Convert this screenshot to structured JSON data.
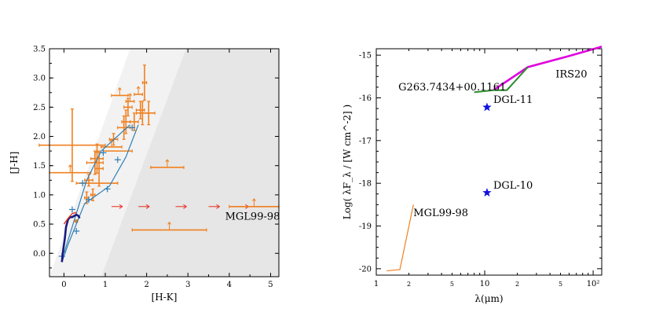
{
  "chart_data": [
    {
      "type": "scatter",
      "title": "",
      "xlabel": "[H-K]",
      "ylabel": "[J-H]",
      "xlim": [
        -0.35,
        5.2
      ],
      "ylim": [
        -0.4,
        3.5
      ],
      "xticks": [
        "0",
        "1",
        "2",
        "3",
        "4",
        "5"
      ],
      "yticks": [
        "0.0",
        "0.5",
        "1.0",
        "1.5",
        "2.0",
        "2.5",
        "3.0",
        "3.5"
      ],
      "grid": false,
      "shaded_band": {
        "lower_edge": [
          [
            -0.35,
            -0.4
          ],
          [
            0.9,
            -0.4
          ],
          [
            2.95,
            3.5
          ]
        ],
        "upper_edge": [
          [
            -0.35,
            -0.4
          ],
          [
            1.6,
            3.5
          ]
        ]
      },
      "series": [
        {
          "kind": "main-sequence",
          "color": "#1a1a80",
          "x": [
            -0.05,
            -0.02,
            0.02,
            0.05,
            0.1,
            0.15,
            0.2,
            0.25,
            0.3,
            0.35,
            0.38
          ],
          "y": [
            -0.15,
            0.05,
            0.25,
            0.45,
            0.58,
            0.62,
            0.62,
            0.64,
            0.66,
            0.64,
            0.6
          ]
        },
        {
          "kind": "giant-branch",
          "color": "#e8301c",
          "x": [
            0.0,
            0.1,
            0.2,
            0.3
          ],
          "y": [
            0.5,
            0.6,
            0.68,
            0.7
          ]
        },
        {
          "kind": "reddening-track",
          "color": "#2f7fb5",
          "x": [
            -0.05,
            0.1,
            0.5,
            1.1,
            1.5,
            1.8
          ],
          "y": [
            -0.15,
            0.15,
            0.85,
            1.15,
            1.65,
            2.2
          ]
        },
        {
          "kind": "reddening-track",
          "color": "#2f7fb5",
          "x": [
            0.0,
            0.55,
            0.9,
            1.6
          ],
          "y": [
            0.0,
            1.25,
            1.75,
            2.2
          ]
        },
        {
          "kind": "track-markers",
          "color": "#2f7fb5",
          "x": [
            -0.05,
            0.2,
            0.3,
            0.6,
            1.05,
            1.3,
            0.45,
            0.95,
            1.65
          ],
          "y": [
            -0.05,
            0.75,
            0.38,
            0.92,
            1.1,
            1.6,
            1.2,
            1.72,
            2.15
          ]
        },
        {
          "kind": "sources",
          "color": "#f08020",
          "points": [
            {
              "x": 0.2,
              "y": 1.85,
              "xerr": 0.8,
              "yerr": 0.62
            },
            {
              "x": 0.15,
              "y": 1.38,
              "xerr": 0.5,
              "yerr": 0,
              "uplim": true
            },
            {
              "x": 0.75,
              "y": 1.55,
              "xerr": 0.2,
              "yerr": 0.2
            },
            {
              "x": 0.8,
              "y": 1.62,
              "xerr": 0.15,
              "yerr": 0.25,
              "uplim": true
            },
            {
              "x": 0.85,
              "y": 1.45,
              "xerr": 0.1,
              "yerr": 0.3
            },
            {
              "x": 0.6,
              "y": 1.25,
              "xerr": 0.1,
              "yerr": 0.1
            },
            {
              "x": 0.7,
              "y": 1.0,
              "xerr": 0.05,
              "yerr": 0.1
            },
            {
              "x": 0.55,
              "y": 0.95,
              "xerr": 0.05,
              "yerr": 0.1
            },
            {
              "x": 0.8,
              "y": 1.2,
              "xerr": 0.5,
              "yerr": 0
            },
            {
              "x": 1.2,
              "y": 1.95,
              "xerr": 0.1,
              "yerr": 0.1
            },
            {
              "x": 1.15,
              "y": 1.82,
              "xerr": 0.25,
              "yerr": 0,
              "uplim": true
            },
            {
              "x": 1.3,
              "y": 1.75,
              "xerr": 0.35,
              "yerr": 0
            },
            {
              "x": 1.35,
              "y": 2.7,
              "xerr": 0.2,
              "yerr": 0,
              "uplim": true
            },
            {
              "x": 1.45,
              "y": 2.15,
              "xerr": 0.15,
              "yerr": 0.2
            },
            {
              "x": 1.55,
              "y": 2.5,
              "xerr": 0.1,
              "yerr": 0.15
            },
            {
              "x": 1.5,
              "y": 2.25,
              "xerr": 0.1,
              "yerr": 0.2
            },
            {
              "x": 1.6,
              "y": 2.6,
              "xerr": 0.1,
              "yerr": 0,
              "uplim": true
            },
            {
              "x": 1.7,
              "y": 2.25,
              "xerr": 0.1,
              "yerr": 0.15
            },
            {
              "x": 1.85,
              "y": 2.45,
              "xerr": 0.1,
              "yerr": 0.15
            },
            {
              "x": 1.9,
              "y": 2.4,
              "xerr": 0.15,
              "yerr": 0.2
            },
            {
              "x": 1.95,
              "y": 2.92,
              "xerr": 0.05,
              "yerr": 0.3
            },
            {
              "x": 2.05,
              "y": 2.4,
              "xerr": 0.15,
              "yerr": 0.2
            },
            {
              "x": 1.8,
              "y": 2.72,
              "xerr": 0.1,
              "yerr": 0,
              "uplim": true
            },
            {
              "x": 2.5,
              "y": 1.47,
              "xerr": 0.4,
              "yerr": 0,
              "uplim": true
            },
            {
              "x": 2.55,
              "y": 0.4,
              "xerr": 0.9,
              "yerr": 0,
              "uplim": true
            },
            {
              "x": 4.6,
              "y": 0.8,
              "xerr": 0.6,
              "yerr": 0,
              "uplim": true
            },
            {
              "x": 0.3,
              "y": 0.55,
              "xerr": 0,
              "yerr": 0
            }
          ]
        },
        {
          "kind": "lower-limits",
          "color": "#e8301c",
          "x": [
            1.15,
            1.8,
            2.7,
            3.5,
            4.2
          ],
          "y": [
            0.8,
            0.8,
            0.8,
            0.8,
            0.8
          ]
        }
      ],
      "annotations": [
        {
          "text": "MGL99-98",
          "x": 3.9,
          "y": 0.63
        }
      ]
    },
    {
      "type": "line",
      "title": "",
      "xlabel": "λ(μm)",
      "ylabel": "Log( λF_λ / [W cm^-2] )",
      "xscale": "log",
      "xlim": [
        1,
        120
      ],
      "ylim": [
        -20.15,
        -14.85
      ],
      "xticks": [
        "1",
        "2",
        "5",
        "10",
        "2",
        "5",
        "10²"
      ],
      "yticks": [
        "-15",
        "-16",
        "-17",
        "-18",
        "-19",
        "-20"
      ],
      "grid": false,
      "series": [
        {
          "kind": "IRS20",
          "color": "#e000e0",
          "x": [
            12,
            25,
            60,
            100,
            120
          ],
          "y": [
            -15.82,
            -15.28,
            -15.02,
            -14.86,
            -14.8
          ]
        },
        {
          "kind": "G263.7434+00.1161",
          "color": "#2e8b2e",
          "x": [
            8,
            12,
            16,
            25
          ],
          "y": [
            -15.87,
            -15.82,
            -15.82,
            -15.28
          ]
        },
        {
          "kind": "MGL99-98",
          "color": "#f08020",
          "x": [
            1.25,
            1.65,
            2.2
          ],
          "y": [
            -20.05,
            -20.02,
            -18.5
          ]
        },
        {
          "kind": "DGL-11",
          "color": "#1010e0",
          "x": [
            10.5
          ],
          "y": [
            -16.22
          ]
        },
        {
          "kind": "DGL-10",
          "color": "#1010e0",
          "x": [
            10.5
          ],
          "y": [
            -18.22
          ]
        }
      ],
      "annotations": [
        {
          "text": "IRS20",
          "x": 45,
          "y": -15.45
        },
        {
          "text": "G263.7434+00.1161",
          "x": 1.6,
          "y": -15.75
        },
        {
          "text": "DGL-11",
          "x": 12,
          "y": -16.05
        },
        {
          "text": "DGL-10",
          "x": 12,
          "y": -18.05
        },
        {
          "text": "MGL99-98",
          "x": 2.2,
          "y": -18.7
        }
      ]
    }
  ]
}
